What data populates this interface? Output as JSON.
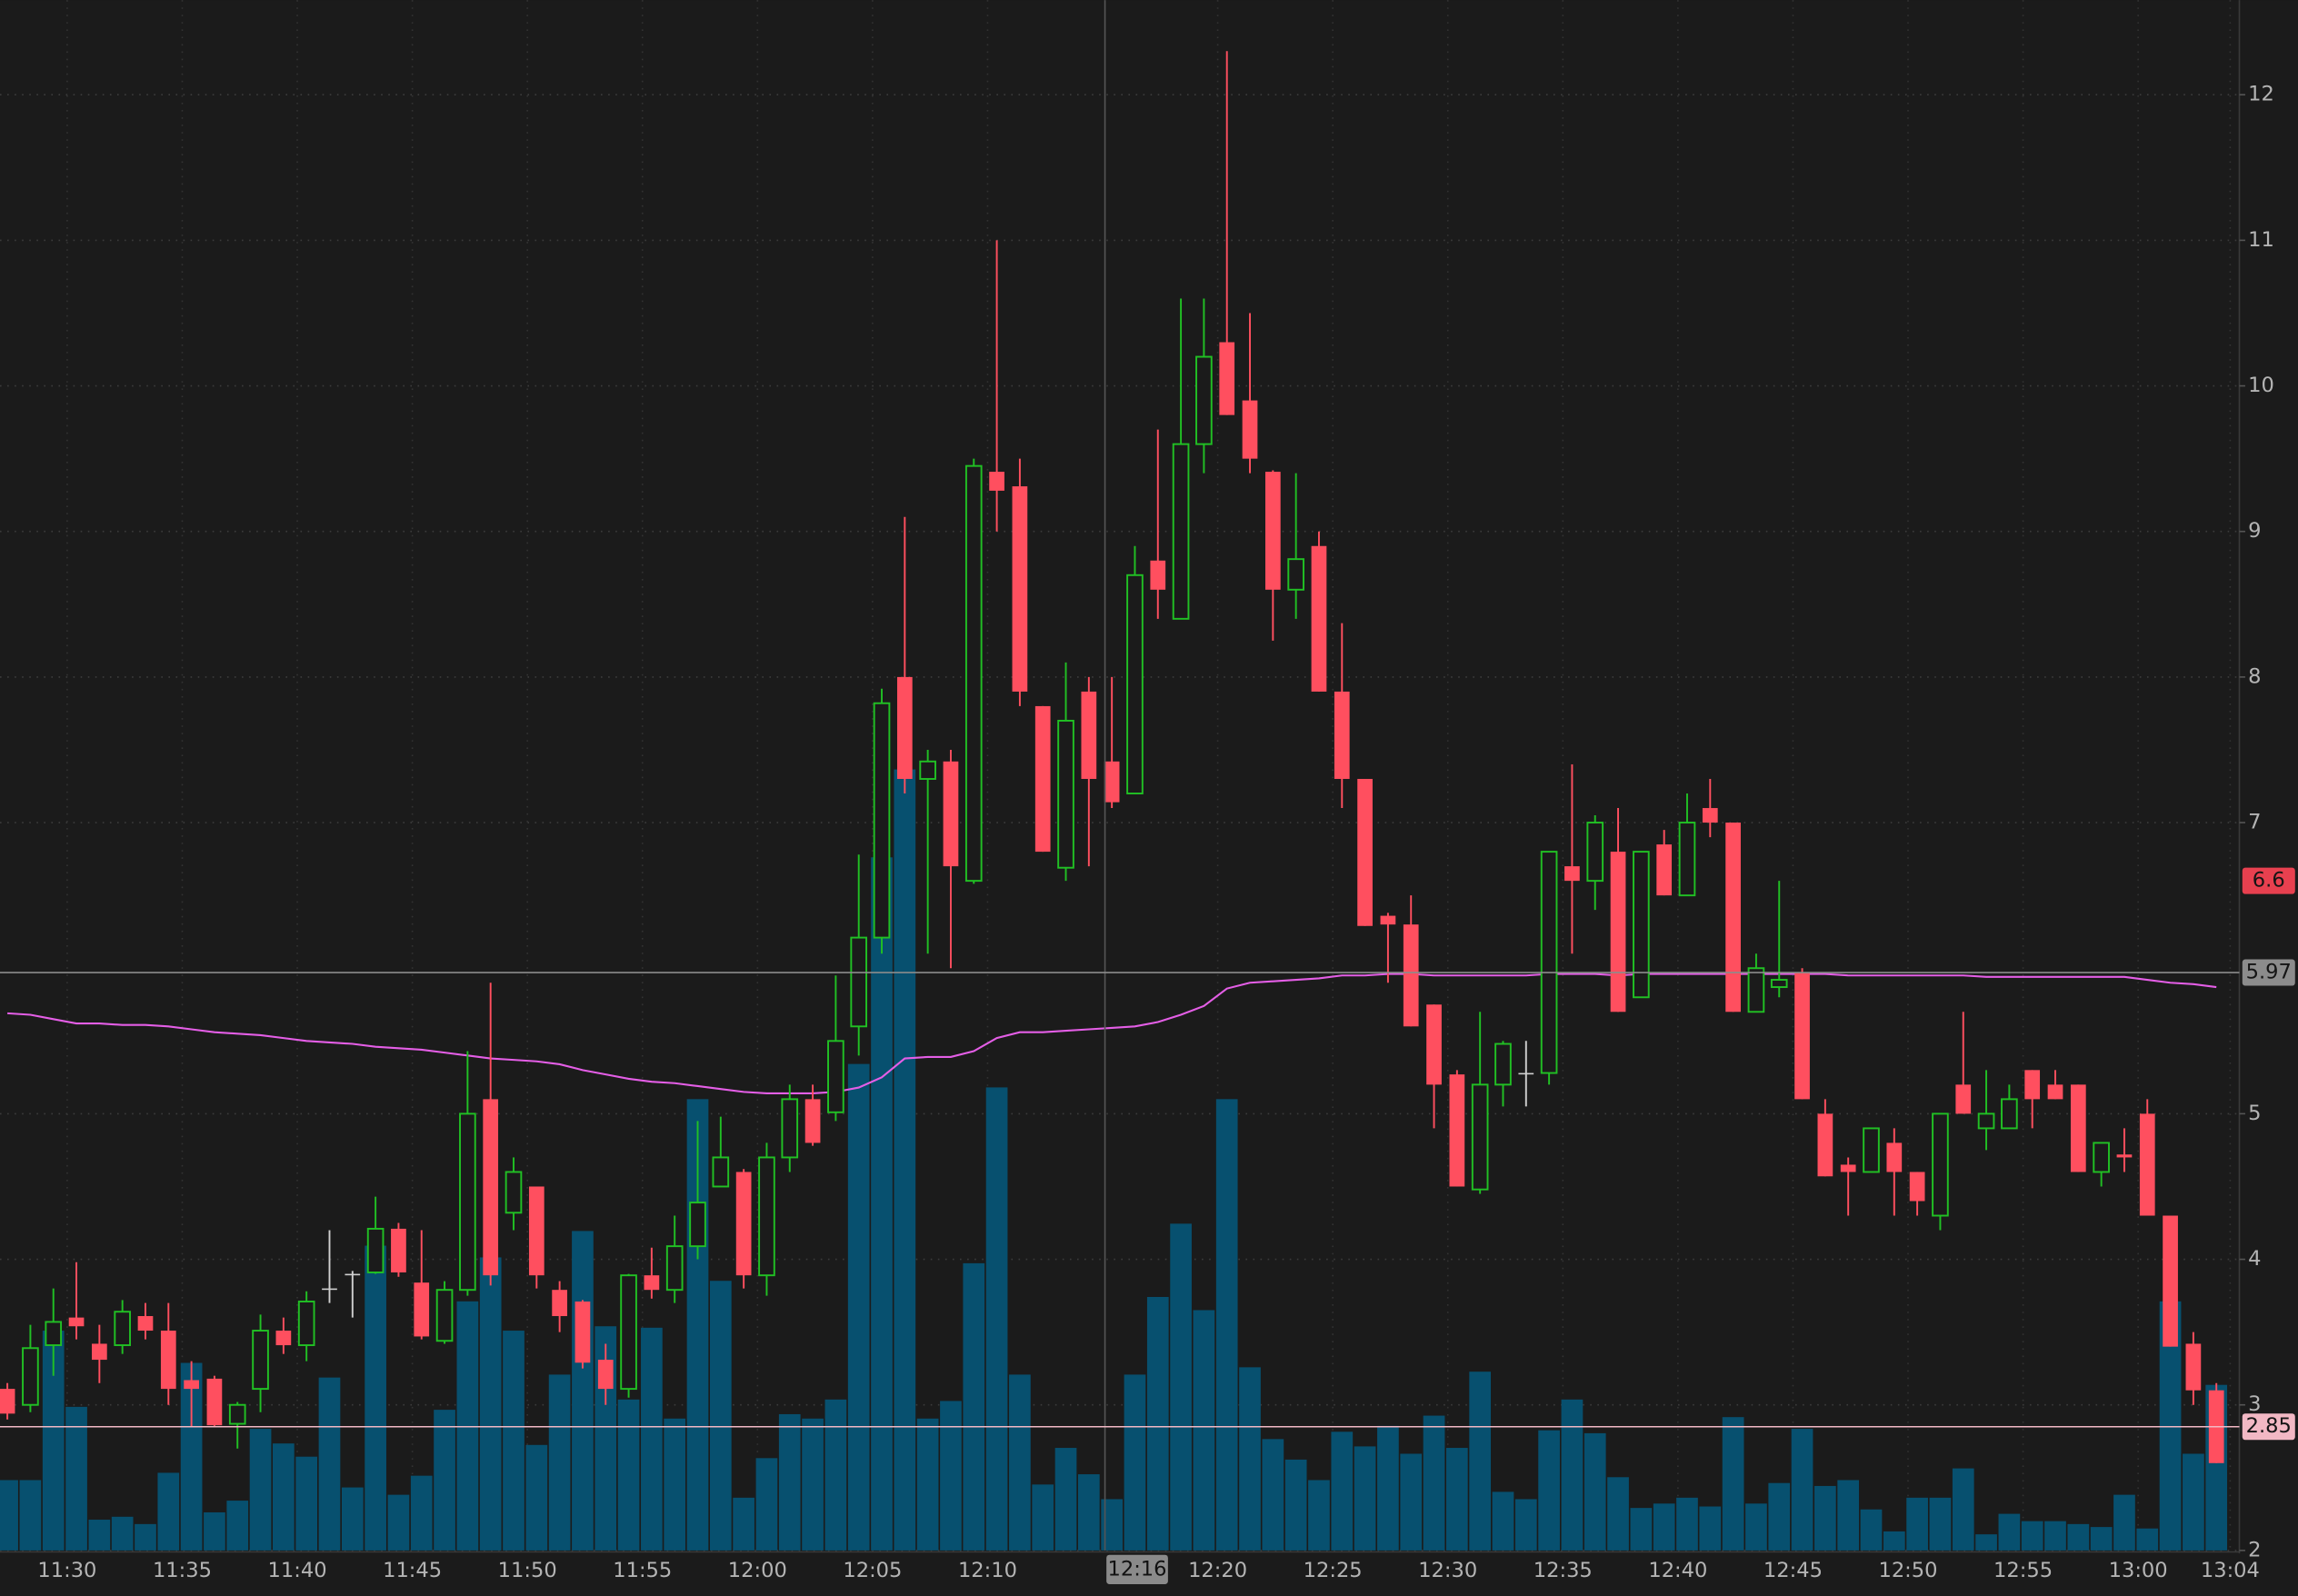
{
  "chart_data": {
    "type": "candlestick",
    "open": [
      3.11,
      3.0,
      3.41,
      3.6,
      3.42,
      3.41,
      3.61,
      3.51,
      3.17,
      3.18,
      2.87,
      3.11,
      3.51,
      3.41,
      3.8,
      3.9,
      3.91,
      4.21,
      3.84,
      3.44,
      3.79,
      5.1,
      4.32,
      4.5,
      3.79,
      3.71,
      3.31,
      3.11,
      3.89,
      3.79,
      4.09,
      4.5,
      4.6,
      3.89,
      4.7,
      5.1,
      5.01,
      5.6,
      6.21,
      8.0,
      7.3,
      7.42,
      6.6,
      9.41,
      9.31,
      7.8,
      6.69,
      7.9,
      7.42,
      7.2,
      8.8,
      8.4,
      9.6,
      10.3,
      9.9,
      9.41,
      8.6,
      8.9,
      7.9,
      7.3,
      6.36,
      6.3,
      5.75,
      5.27,
      4.48,
      5.2,
      5.28,
      5.28,
      6.7,
      6.6,
      6.8,
      5.8,
      6.85,
      6.5,
      7.1,
      7.0,
      5.7,
      5.87,
      5.97,
      5.0,
      4.65,
      4.6,
      4.8,
      4.6,
      4.3,
      5.2,
      4.9,
      4.9,
      5.3,
      5.2,
      5.2,
      4.6,
      4.72,
      5.0,
      4.3,
      3.42,
      3.1
    ],
    "high": [
      3.15,
      3.55,
      3.8,
      3.98,
      3.55,
      3.72,
      3.7,
      3.7,
      3.3,
      3.2,
      3.02,
      3.62,
      3.6,
      3.78,
      4.2,
      3.92,
      4.43,
      4.25,
      4.2,
      3.85,
      5.43,
      5.9,
      4.7,
      4.5,
      3.85,
      3.72,
      3.42,
      3.9,
      4.08,
      4.3,
      4.95,
      4.98,
      4.62,
      4.8,
      5.2,
      5.2,
      5.95,
      6.78,
      7.92,
      9.1,
      7.5,
      7.5,
      9.5,
      11.0,
      9.5,
      7.8,
      8.1,
      8.0,
      8.0,
      8.9,
      9.7,
      10.6,
      10.6,
      12.3,
      10.5,
      9.42,
      9.4,
      9.0,
      8.37,
      7.3,
      6.38,
      6.5,
      5.75,
      5.3,
      5.7,
      5.5,
      5.5,
      6.8,
      7.4,
      7.05,
      7.1,
      6.8,
      6.95,
      7.2,
      7.3,
      7.0,
      6.1,
      6.6,
      6.0,
      5.1,
      4.7,
      4.9,
      4.9,
      4.6,
      5.0,
      5.7,
      5.3,
      5.2,
      5.3,
      5.3,
      5.2,
      4.8,
      4.9,
      5.1,
      4.3,
      3.5,
      3.15
    ],
    "low": [
      2.9,
      2.95,
      3.2,
      3.45,
      3.15,
      3.35,
      3.45,
      3.0,
      2.85,
      2.85,
      2.7,
      2.95,
      3.35,
      3.3,
      3.7,
      3.6,
      3.9,
      3.88,
      3.45,
      3.42,
      3.75,
      3.82,
      4.2,
      3.8,
      3.5,
      3.25,
      3.0,
      3.05,
      3.73,
      3.7,
      4.0,
      4.5,
      3.8,
      3.75,
      4.6,
      4.78,
      4.95,
      5.4,
      6.1,
      7.2,
      6.1,
      6.0,
      6.58,
      9.0,
      7.8,
      6.8,
      6.6,
      6.7,
      7.1,
      7.2,
      8.4,
      8.4,
      9.4,
      9.8,
      9.4,
      8.25,
      8.4,
      7.9,
      7.1,
      6.29,
      5.9,
      5.6,
      4.9,
      4.5,
      4.45,
      5.05,
      5.05,
      5.2,
      6.1,
      6.4,
      5.7,
      5.8,
      6.5,
      6.5,
      6.9,
      5.7,
      5.7,
      5.8,
      5.1,
      4.57,
      4.3,
      4.6,
      4.3,
      4.3,
      4.2,
      5.0,
      4.75,
      4.9,
      4.9,
      5.1,
      4.6,
      4.5,
      4.6,
      4.3,
      3.4,
      3.0,
      2.6
    ],
    "close": [
      2.94,
      3.39,
      3.57,
      3.54,
      3.31,
      3.64,
      3.51,
      3.11,
      3.11,
      2.86,
      3.0,
      3.51,
      3.41,
      3.71,
      3.8,
      3.9,
      4.21,
      3.91,
      3.47,
      3.79,
      5.0,
      3.89,
      4.6,
      3.89,
      3.61,
      3.29,
      3.11,
      3.89,
      3.79,
      4.09,
      4.39,
      4.7,
      3.89,
      4.7,
      5.1,
      4.8,
      5.5,
      6.21,
      7.82,
      7.3,
      7.42,
      6.7,
      9.45,
      9.28,
      7.9,
      6.8,
      7.7,
      7.3,
      7.14,
      8.7,
      8.6,
      9.6,
      10.2,
      9.8,
      9.5,
      8.6,
      8.81,
      7.9,
      7.3,
      6.29,
      6.3,
      5.6,
      5.2,
      4.5,
      5.2,
      5.48,
      5.28,
      6.8,
      6.6,
      7.0,
      5.7,
      6.8,
      6.5,
      7.0,
      7.0,
      5.7,
      6.0,
      5.92,
      5.1,
      4.57,
      4.6,
      4.9,
      4.6,
      4.4,
      5.0,
      5.0,
      5.0,
      5.1,
      5.1,
      5.1,
      4.6,
      4.8,
      4.7,
      4.3,
      3.4,
      3.1,
      2.6
    ],
    "volume": [
      48,
      48,
      150,
      98,
      21,
      23,
      18,
      53,
      128,
      26,
      34,
      83,
      73,
      64,
      118,
      43,
      208,
      38,
      51,
      96,
      170,
      200,
      150,
      72,
      120,
      218,
      153,
      103,
      152,
      90,
      308,
      184,
      36,
      63,
      93,
      90,
      103,
      332,
      473,
      533,
      90,
      102,
      196,
      316,
      120,
      45,
      70,
      52,
      35,
      120,
      173,
      223,
      164,
      308,
      125,
      76,
      62,
      48,
      81,
      71,
      85,
      66,
      92,
      70,
      122,
      40,
      35,
      82,
      103,
      80,
      50,
      29,
      32,
      36,
      30,
      91,
      32,
      46,
      83,
      44,
      48,
      28,
      13,
      36,
      36,
      56,
      11,
      25,
      20,
      20,
      18,
      16,
      38,
      15,
      170,
      66,
      113
    ],
    "ma": [
      5.69,
      5.68,
      5.65,
      5.62,
      5.62,
      5.61,
      5.61,
      5.6,
      5.58,
      5.56,
      5.55,
      5.54,
      5.52,
      5.5,
      5.49,
      5.48,
      5.46,
      5.45,
      5.44,
      5.42,
      5.4,
      5.38,
      5.37,
      5.36,
      5.34,
      5.3,
      5.27,
      5.24,
      5.22,
      5.21,
      5.19,
      5.17,
      5.15,
      5.14,
      5.14,
      5.14,
      5.15,
      5.18,
      5.25,
      5.38,
      5.39,
      5.39,
      5.43,
      5.52,
      5.56,
      5.56,
      5.57,
      5.58,
      5.59,
      5.6,
      5.63,
      5.68,
      5.74,
      5.86,
      5.9,
      5.91,
      5.92,
      5.93,
      5.95,
      5.95,
      5.96,
      5.96,
      5.95,
      5.95,
      5.95,
      5.95,
      5.95,
      5.96,
      5.96,
      5.96,
      5.95,
      5.96,
      5.96,
      5.96,
      5.96,
      5.96,
      5.96,
      5.96,
      5.96,
      5.96,
      5.95,
      5.95,
      5.95,
      5.95,
      5.95,
      5.95,
      5.94,
      5.94,
      5.94,
      5.94,
      5.94,
      5.94,
      5.94,
      5.92,
      5.9,
      5.89,
      5.87
    ],
    "up_color": "#21c024",
    "down_color": "#ff4f5f",
    "doji_color": "#cfcfcf",
    "volume_color": "#07506f",
    "ma_color": "#e45ee6",
    "xlim": [
      -0.32,
      97
    ],
    "ylim": [
      2,
      12.65
    ],
    "volume_ylim": [
      0,
      1058
    ],
    "yticks": [
      2,
      3,
      4,
      5,
      7,
      8,
      9,
      10,
      11,
      12
    ],
    "xticks": [
      {
        "value": 2.6,
        "label": "11:30"
      },
      {
        "value": 7.6,
        "label": "11:35"
      },
      {
        "value": 12.6,
        "label": "11:40"
      },
      {
        "value": 17.6,
        "label": "11:45"
      },
      {
        "value": 22.6,
        "label": "11:50"
      },
      {
        "value": 27.6,
        "label": "11:55"
      },
      {
        "value": 32.6,
        "label": "12:00"
      },
      {
        "value": 37.6,
        "label": "12:05"
      },
      {
        "value": 42.6,
        "label": "12:10"
      },
      {
        "value": 52.6,
        "label": "12:20"
      },
      {
        "value": 57.6,
        "label": "12:25"
      },
      {
        "value": 62.6,
        "label": "12:30"
      },
      {
        "value": 67.6,
        "label": "12:35"
      },
      {
        "value": 72.6,
        "label": "12:40"
      },
      {
        "value": 77.6,
        "label": "12:45"
      },
      {
        "value": 82.6,
        "label": "12:50"
      },
      {
        "value": 87.6,
        "label": "12:55"
      },
      {
        "value": 92.6,
        "label": "13:00"
      },
      {
        "value": 96.6,
        "label": "13:04"
      }
    ],
    "grid": true,
    "price_tags": [
      {
        "value": 6.6,
        "color": "#e8404f",
        "line": false
      },
      {
        "value": 5.97,
        "color": "#8c8c8c",
        "line": true
      },
      {
        "value": 2.85,
        "color": "#f2b8c4",
        "line": true
      }
    ],
    "crosshair": {
      "value": 47.7,
      "label": "12:16"
    }
  }
}
